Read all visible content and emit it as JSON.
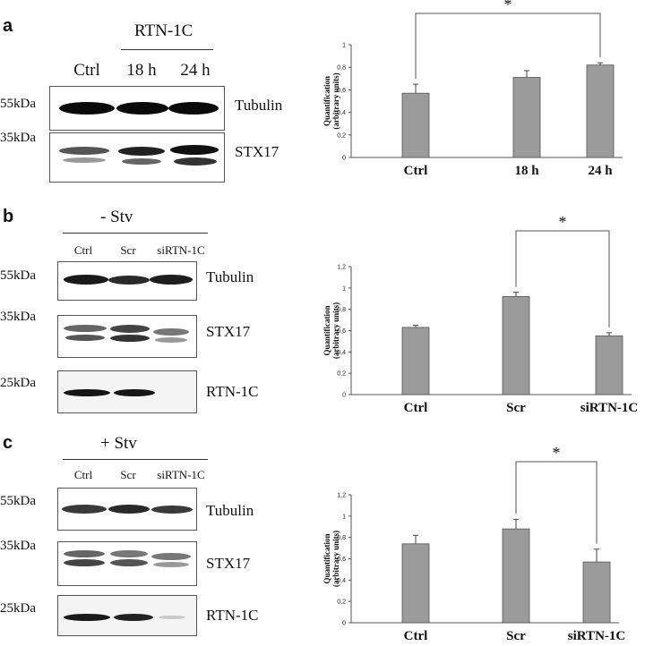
{
  "panels": [
    {
      "letter": "a",
      "header": "RTN-1C",
      "conditions": [
        "Ctrl",
        "18 h",
        "24 h"
      ],
      "rows": [
        {
          "kda": "55kDa",
          "protein": "Tubulin"
        },
        {
          "kda": "35kDa",
          "protein": "STX17"
        }
      ]
    },
    {
      "letter": "b",
      "header": "- Stv",
      "conditions": [
        "Ctrl",
        "Scr",
        "siRTN-1C"
      ],
      "rows": [
        {
          "kda": "55kDa",
          "protein": "Tubulin"
        },
        {
          "kda": "35kDa",
          "protein": "STX17"
        },
        {
          "kda": "25kDa",
          "protein": "RTN-1C"
        }
      ]
    },
    {
      "letter": "c",
      "header": "+ Stv",
      "conditions": [
        "Ctrl",
        "Scr",
        "siRTN-1C"
      ],
      "rows": [
        {
          "kda": "55kDa",
          "protein": "Tubulin"
        },
        {
          "kda": "35kDa",
          "protein": "STX17"
        },
        {
          "kda": "25kDa",
          "protein": "RTN-1C"
        }
      ]
    }
  ],
  "chart_data": [
    {
      "type": "bar",
      "categories": [
        "Ctrl",
        "18 h",
        "24 h"
      ],
      "values": [
        0.57,
        0.71,
        0.82
      ],
      "errors": [
        0.08,
        0.06,
        0.02
      ],
      "ylabel": "Quantification\n(arbitrary units)",
      "ylim": [
        0,
        1
      ],
      "yticks": [
        "0",
        "0,2",
        "0,4",
        "0,6",
        "0,8",
        "1"
      ],
      "significance": {
        "from": 0,
        "to": 2,
        "label": "*"
      },
      "bar_color": "#9b9b9b"
    },
    {
      "type": "bar",
      "categories": [
        "Ctrl",
        "Scr",
        "siRTN-1C"
      ],
      "values": [
        0.63,
        0.92,
        0.55
      ],
      "errors": [
        0.02,
        0.04,
        0.03
      ],
      "ylabel": "Quantification\n(arbitrary units)",
      "ylim": [
        0,
        1.2
      ],
      "yticks": [
        "0",
        "0,2",
        "0,4",
        "0,6",
        "0,8",
        "1",
        "1,2"
      ],
      "significance": {
        "from": 1,
        "to": 2,
        "label": "*"
      },
      "bar_color": "#9b9b9b"
    },
    {
      "type": "bar",
      "categories": [
        "Ctrl",
        "Scr",
        "siRTN-1C"
      ],
      "values": [
        0.74,
        0.88,
        0.57
      ],
      "errors": [
        0.08,
        0.09,
        0.12
      ],
      "ylabel": "Quantification\n(arbitrary units)",
      "ylim": [
        0,
        1.2
      ],
      "yticks": [
        "0",
        "0,2",
        "0,4",
        "0,6",
        "0,8",
        "1",
        "1,2"
      ],
      "significance": {
        "from": 1,
        "to": 2,
        "label": "*"
      },
      "bar_color": "#9b9b9b"
    }
  ]
}
